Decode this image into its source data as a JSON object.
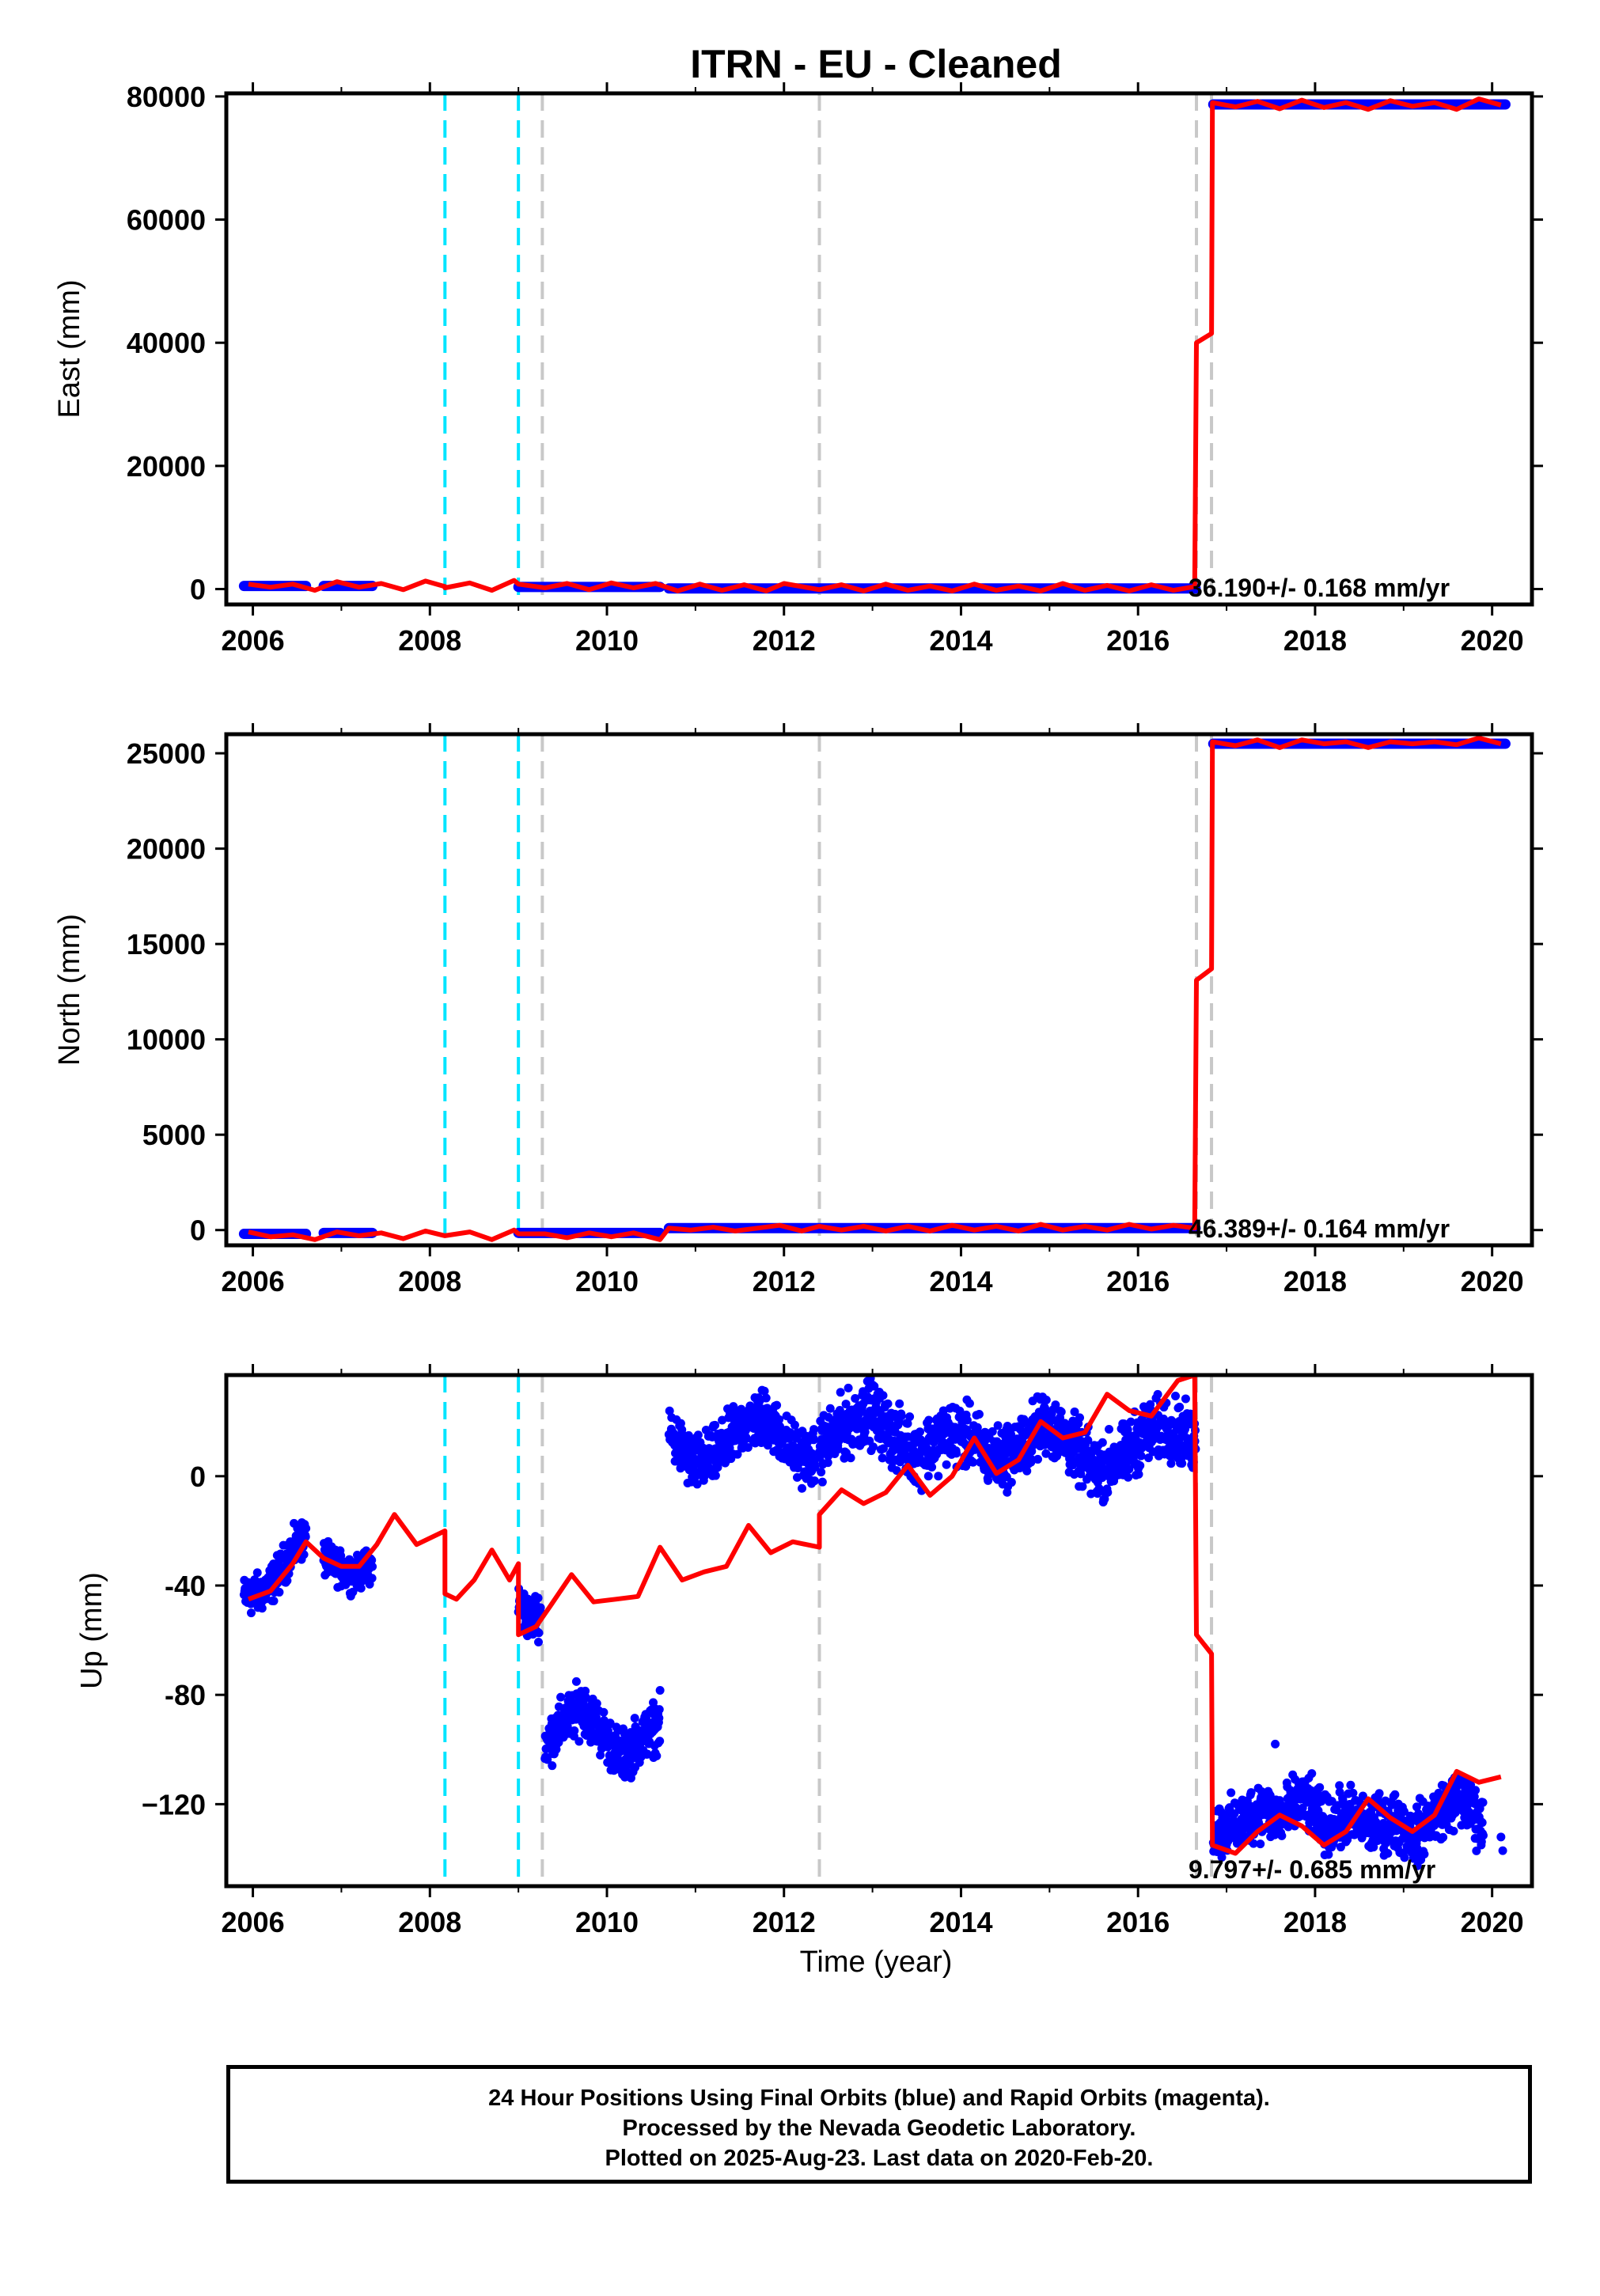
{
  "figure": {
    "title": "ITRN  - EU - Cleaned",
    "xlabel": "Time (year)"
  },
  "footer": {
    "line1": "24 Hour Positions Using Final Orbits (blue) and Rapid Orbits (magenta).",
    "line2": "Processed by the Nevada Geodetic Laboratory.",
    "line3": "Plotted on 2025-Aug-23. Last data on 2020-Feb-20."
  },
  "colors": {
    "data": "#0000ff",
    "model": "#ff0000",
    "equipment_change": "#00e5ff",
    "earthquake": "#c8c8c8"
  },
  "chart_data": [
    {
      "type": "scatter",
      "name": "East",
      "ylabel": "East (mm)",
      "xlim": [
        2005.7,
        2020.45
      ],
      "ylim": [
        -2500,
        80500
      ],
      "xticks": [
        2006,
        2008,
        2010,
        2012,
        2014,
        2016,
        2018,
        2020
      ],
      "yticks": [
        0,
        20000,
        40000,
        60000,
        80000
      ],
      "ytick_labels": [
        "0",
        "20000",
        "40000",
        "60000",
        "80000"
      ],
      "rate_label": "36.190+/- 0.168 mm/yr",
      "vlines_cyan": [
        2008.17,
        2009.0
      ],
      "vlines_gray": [
        2009.27,
        2012.4,
        2016.66,
        2016.83
      ],
      "data_segments": [
        {
          "x": [
            2005.9,
            2006.6
          ],
          "y": 500
        },
        {
          "x": [
            2006.8,
            2007.35
          ],
          "y": 500
        },
        {
          "x": [
            2009.0,
            2010.6
          ],
          "y": 350
        },
        {
          "x": [
            2010.7,
            2016.65
          ],
          "y": 100
        },
        {
          "x": [
            2016.85,
            2020.15
          ],
          "y": 78700
        }
      ],
      "model": [
        [
          2005.95,
          800
        ],
        [
          2006.2,
          300
        ],
        [
          2006.45,
          800
        ],
        [
          2006.7,
          -200
        ],
        [
          2006.95,
          1200
        ],
        [
          2007.2,
          300
        ],
        [
          2007.45,
          900
        ],
        [
          2007.7,
          -100
        ],
        [
          2007.95,
          1300
        ],
        [
          2008.17,
          400
        ],
        [
          2008.17,
          200
        ],
        [
          2008.45,
          1000
        ],
        [
          2008.7,
          -200
        ],
        [
          2008.95,
          1400
        ],
        [
          2009.0,
          800
        ],
        [
          2009.3,
          200
        ],
        [
          2009.55,
          900
        ],
        [
          2009.8,
          -100
        ],
        [
          2010.05,
          1000
        ],
        [
          2010.3,
          200
        ],
        [
          2010.55,
          900
        ],
        [
          2010.8,
          -300
        ],
        [
          2011.05,
          800
        ],
        [
          2011.3,
          -200
        ],
        [
          2011.55,
          700
        ],
        [
          2011.8,
          -300
        ],
        [
          2012.0,
          900
        ],
        [
          2012.4,
          -100
        ],
        [
          2012.65,
          700
        ],
        [
          2012.9,
          -300
        ],
        [
          2013.15,
          800
        ],
        [
          2013.4,
          -200
        ],
        [
          2013.65,
          500
        ],
        [
          2013.9,
          -300
        ],
        [
          2014.15,
          800
        ],
        [
          2014.4,
          -200
        ],
        [
          2014.65,
          500
        ],
        [
          2014.9,
          -300
        ],
        [
          2015.15,
          900
        ],
        [
          2015.4,
          -200
        ],
        [
          2015.65,
          600
        ],
        [
          2015.9,
          -300
        ],
        [
          2016.15,
          700
        ],
        [
          2016.4,
          -200
        ],
        [
          2016.64,
          400
        ],
        [
          2016.66,
          40000
        ],
        [
          2016.83,
          41500
        ],
        [
          2016.84,
          79000
        ],
        [
          2017.1,
          78300
        ],
        [
          2017.35,
          79200
        ],
        [
          2017.6,
          78000
        ],
        [
          2017.85,
          79400
        ],
        [
          2018.1,
          78200
        ],
        [
          2018.35,
          79000
        ],
        [
          2018.6,
          77900
        ],
        [
          2018.85,
          79300
        ],
        [
          2019.1,
          78400
        ],
        [
          2019.35,
          79000
        ],
        [
          2019.6,
          77900
        ],
        [
          2019.85,
          79600
        ],
        [
          2020.1,
          78600
        ]
      ]
    },
    {
      "type": "scatter",
      "name": "North",
      "ylabel": "North (mm)",
      "xlim": [
        2005.7,
        2020.45
      ],
      "ylim": [
        -800,
        26000
      ],
      "xticks": [
        2006,
        2008,
        2010,
        2012,
        2014,
        2016,
        2018,
        2020
      ],
      "yticks": [
        0,
        5000,
        10000,
        15000,
        20000,
        25000
      ],
      "ytick_labels": [
        "0",
        "5000",
        "10000",
        "15000",
        "20000",
        "25000"
      ],
      "rate_label": "46.389+/- 0.164 mm/yr",
      "vlines_cyan": [
        2008.17,
        2009.0
      ],
      "vlines_gray": [
        2009.27,
        2012.4,
        2016.66,
        2016.83
      ],
      "data_segments": [
        {
          "x": [
            2005.9,
            2006.6
          ],
          "y": -200
        },
        {
          "x": [
            2006.8,
            2007.35
          ],
          "y": -150
        },
        {
          "x": [
            2009.0,
            2010.6
          ],
          "y": -150
        },
        {
          "x": [
            2010.7,
            2016.65
          ],
          "y": 100
        },
        {
          "x": [
            2016.85,
            2020.15
          ],
          "y": 25500
        }
      ],
      "model": [
        [
          2005.95,
          -100
        ],
        [
          2006.2,
          -350
        ],
        [
          2006.45,
          -250
        ],
        [
          2006.7,
          -500
        ],
        [
          2006.95,
          -100
        ],
        [
          2007.2,
          -300
        ],
        [
          2007.45,
          -150
        ],
        [
          2007.7,
          -450
        ],
        [
          2007.95,
          -50
        ],
        [
          2008.17,
          -300
        ],
        [
          2008.45,
          -100
        ],
        [
          2008.7,
          -500
        ],
        [
          2008.95,
          0
        ],
        [
          2009.0,
          -200
        ],
        [
          2009.3,
          -200
        ],
        [
          2009.55,
          -400
        ],
        [
          2009.8,
          -150
        ],
        [
          2010.05,
          -350
        ],
        [
          2010.3,
          -150
        ],
        [
          2010.6,
          -500
        ],
        [
          2010.7,
          100
        ],
        [
          2010.95,
          0
        ],
        [
          2011.2,
          150
        ],
        [
          2011.45,
          -50
        ],
        [
          2011.7,
          100
        ],
        [
          2011.95,
          250
        ],
        [
          2012.2,
          -50
        ],
        [
          2012.4,
          200
        ],
        [
          2012.65,
          0
        ],
        [
          2012.9,
          200
        ],
        [
          2013.15,
          -50
        ],
        [
          2013.4,
          200
        ],
        [
          2013.65,
          -50
        ],
        [
          2013.9,
          250
        ],
        [
          2014.15,
          0
        ],
        [
          2014.4,
          200
        ],
        [
          2014.65,
          -50
        ],
        [
          2014.9,
          300
        ],
        [
          2015.15,
          0
        ],
        [
          2015.4,
          200
        ],
        [
          2015.65,
          0
        ],
        [
          2015.9,
          300
        ],
        [
          2016.15,
          50
        ],
        [
          2016.4,
          250
        ],
        [
          2016.64,
          100
        ],
        [
          2016.66,
          13100
        ],
        [
          2016.83,
          13700
        ],
        [
          2016.84,
          25600
        ],
        [
          2017.1,
          25400
        ],
        [
          2017.35,
          25700
        ],
        [
          2017.6,
          25300
        ],
        [
          2017.85,
          25700
        ],
        [
          2018.1,
          25500
        ],
        [
          2018.35,
          25600
        ],
        [
          2018.6,
          25300
        ],
        [
          2018.85,
          25600
        ],
        [
          2019.1,
          25500
        ],
        [
          2019.35,
          25600
        ],
        [
          2019.6,
          25450
        ],
        [
          2019.85,
          25800
        ],
        [
          2020.1,
          25500
        ]
      ]
    },
    {
      "type": "scatter",
      "name": "Up",
      "ylabel": "Up (mm)",
      "xlim": [
        2005.7,
        2020.45
      ],
      "ylim": [
        -150,
        37
      ],
      "xticks": [
        2006,
        2008,
        2010,
        2012,
        2014,
        2016,
        2018,
        2020
      ],
      "yticks": [
        -120,
        -80,
        -40,
        0
      ],
      "ytick_labels": [
        "−120",
        "-80",
        "-40",
        "0"
      ],
      "rate_label": "9.797+/- 0.685 mm/yr",
      "vlines_cyan": [
        2008.17,
        2009.0
      ],
      "vlines_gray": [
        2009.27,
        2012.4,
        2016.66,
        2016.83
      ],
      "data_clusters": [
        {
          "x0": 2005.9,
          "x1": 2006.6,
          "center": [
            -44,
            -43,
            -38,
            -28,
            -22
          ],
          "spread": 7
        },
        {
          "x0": 2006.8,
          "x1": 2007.35,
          "center": [
            -30,
            -34,
            -36,
            -32
          ],
          "spread": 6
        },
        {
          "x0": 2009.0,
          "x1": 2009.25,
          "center": [
            -47,
            -52,
            -50
          ],
          "spread": 8
        },
        {
          "x0": 2009.3,
          "x1": 2010.6,
          "center": [
            -98,
            -90,
            -84,
            -94,
            -103,
            -96,
            -90
          ],
          "spread": 9
        },
        {
          "x0": 2010.7,
          "x1": 2012.35,
          "center": [
            16,
            4,
            8,
            18,
            22,
            10,
            6
          ],
          "spread": 10
        },
        {
          "x0": 2012.4,
          "x1": 2016.65,
          "center": [
            10,
            18,
            24,
            14,
            8,
            16,
            14,
            6,
            10,
            20,
            12,
            2,
            6,
            16,
            18,
            12
          ],
          "spread": 11
        },
        {
          "x0": 2016.85,
          "x1": 2019.9,
          "center": [
            -130,
            -128,
            -122,
            -125,
            -118,
            -128,
            -124,
            -128,
            -126,
            -132,
            -122,
            -118,
            -128
          ],
          "spread": 10
        }
      ],
      "data_points": [
        [
          2020.1,
          -132
        ],
        [
          2020.12,
          -137
        ],
        [
          2017.55,
          -98
        ]
      ],
      "model": [
        [
          2005.95,
          -45
        ],
        [
          2006.2,
          -42
        ],
        [
          2006.45,
          -32
        ],
        [
          2006.6,
          -24
        ],
        [
          2006.8,
          -30
        ],
        [
          2007.0,
          -33
        ],
        [
          2007.2,
          -33
        ],
        [
          2007.4,
          -25
        ],
        [
          2007.6,
          -14
        ],
        [
          2007.85,
          -25
        ],
        [
          2008.17,
          -20
        ],
        [
          2008.17,
          -43
        ],
        [
          2008.3,
          -45
        ],
        [
          2008.5,
          -38
        ],
        [
          2008.7,
          -27
        ],
        [
          2008.9,
          -38
        ],
        [
          2009.0,
          -32
        ],
        [
          2009.0,
          -58
        ],
        [
          2009.2,
          -55
        ],
        [
          2009.35,
          -48
        ],
        [
          2009.6,
          -36
        ],
        [
          2009.85,
          -46
        ],
        [
          2010.1,
          -45
        ],
        [
          2010.35,
          -44
        ],
        [
          2010.6,
          -26
        ],
        [
          2010.85,
          -38
        ],
        [
          2011.1,
          -35
        ],
        [
          2011.35,
          -33
        ],
        [
          2011.6,
          -18
        ],
        [
          2011.85,
          -28
        ],
        [
          2012.1,
          -24
        ],
        [
          2012.4,
          -26
        ],
        [
          2012.4,
          -14
        ],
        [
          2012.65,
          -5
        ],
        [
          2012.9,
          -10
        ],
        [
          2013.15,
          -6
        ],
        [
          2013.4,
          4
        ],
        [
          2013.65,
          -7
        ],
        [
          2013.9,
          0
        ],
        [
          2014.15,
          14
        ],
        [
          2014.4,
          1
        ],
        [
          2014.65,
          6
        ],
        [
          2014.9,
          20
        ],
        [
          2015.15,
          14
        ],
        [
          2015.4,
          16
        ],
        [
          2015.65,
          30
        ],
        [
          2015.9,
          24
        ],
        [
          2016.15,
          22
        ],
        [
          2016.45,
          35
        ],
        [
          2016.64,
          37
        ],
        [
          2016.66,
          -58
        ],
        [
          2016.83,
          -65
        ],
        [
          2016.84,
          -135
        ],
        [
          2017.1,
          -138
        ],
        [
          2017.35,
          -130
        ],
        [
          2017.6,
          -124
        ],
        [
          2017.85,
          -128
        ],
        [
          2018.1,
          -135
        ],
        [
          2018.35,
          -130
        ],
        [
          2018.6,
          -118
        ],
        [
          2018.85,
          -125
        ],
        [
          2019.1,
          -130
        ],
        [
          2019.35,
          -124
        ],
        [
          2019.6,
          -108
        ],
        [
          2019.85,
          -112
        ],
        [
          2020.1,
          -110
        ]
      ]
    }
  ]
}
